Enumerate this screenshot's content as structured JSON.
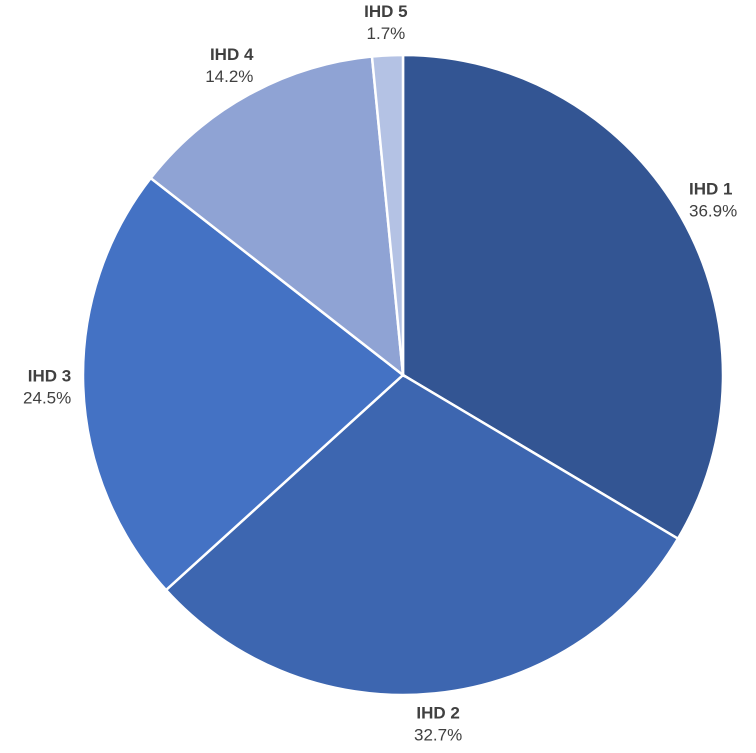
{
  "chart_data": {
    "type": "pie",
    "categories": [
      "IHD 1",
      "IHD 2",
      "IHD 3",
      "IHD 4",
      "IHD 5"
    ],
    "values": [
      36.9,
      32.7,
      24.5,
      14.2,
      1.7
    ],
    "value_labels": [
      "36.9%",
      "32.7%",
      "24.5%",
      "14.2%",
      "1.7%"
    ],
    "colors": [
      "#335593",
      "#3d66b0",
      "#4472c4",
      "#8fa3d4",
      "#b4c2e4"
    ]
  }
}
